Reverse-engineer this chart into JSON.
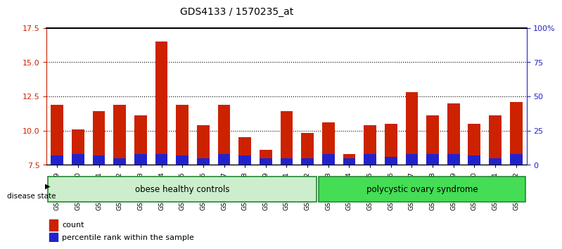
{
  "title": "GDS4133 / 1570235_at",
  "samples": [
    "GSM201849",
    "GSM201850",
    "GSM201851",
    "GSM201852",
    "GSM201853",
    "GSM201854",
    "GSM201855",
    "GSM201856",
    "GSM201857",
    "GSM201858",
    "GSM201859",
    "GSM201861",
    "GSM201862",
    "GSM201863",
    "GSM201864",
    "GSM201865",
    "GSM201866",
    "GSM201867",
    "GSM201868",
    "GSM201869",
    "GSM201870",
    "GSM201871",
    "GSM201872"
  ],
  "count_values": [
    11.9,
    10.1,
    11.4,
    11.9,
    11.1,
    16.5,
    11.9,
    10.4,
    11.9,
    9.5,
    8.6,
    11.4,
    9.8,
    10.6,
    8.3,
    10.4,
    10.5,
    12.8,
    11.1,
    12.0,
    10.5,
    11.1,
    12.1
  ],
  "percentile_values": [
    7,
    8,
    7,
    5,
    8,
    8,
    7,
    5,
    8,
    7,
    5,
    5,
    5,
    8,
    5,
    8,
    6,
    8,
    8,
    8,
    7,
    5,
    8
  ],
  "group1_label": "obese healthy controls",
  "group1_count": 13,
  "group2_label": "polycystic ovary syndrome",
  "group2_count": 10,
  "disease_state_label": "disease state",
  "y_min": 7.5,
  "y_max": 17.5,
  "y_ticks": [
    7.5,
    10.0,
    12.5,
    15.0,
    17.5
  ],
  "y2_ticks": [
    0,
    25,
    50,
    75,
    100
  ],
  "y2_labels": [
    "0",
    "25",
    "50",
    "75",
    "100%"
  ],
  "red_color": "#cc2200",
  "blue_color": "#2222cc",
  "group1_bg_color": "#cceecc",
  "group2_bg_color": "#44dd55",
  "group_edge_color": "#228833",
  "bar_width": 0.6,
  "count_legend": "count",
  "percentile_legend": "percentile rank within the sample"
}
